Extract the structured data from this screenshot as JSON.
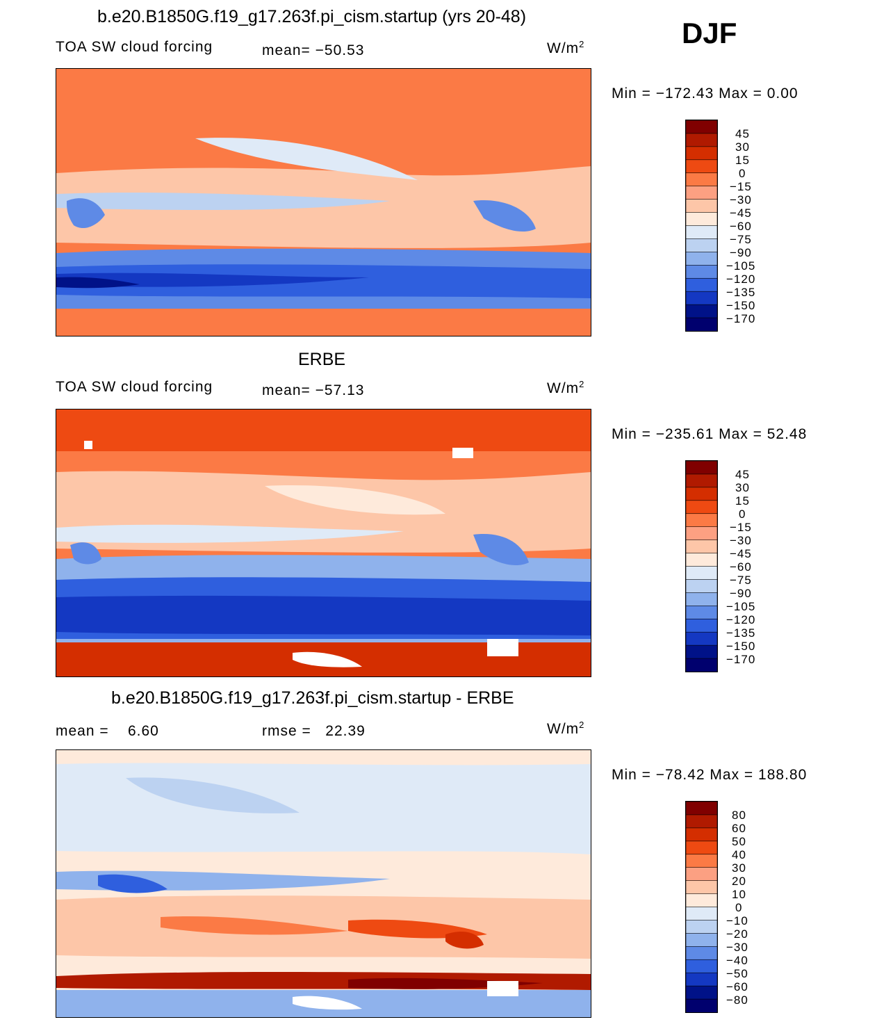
{
  "season": "DJF",
  "panels": [
    {
      "title": "b.e20.B1850G.f19_g17.263f.pi_cism.startup (yrs 20-48)",
      "left_label": "TOA SW cloud forcing",
      "mid_label": "mean= −50.53",
      "units_base": "W/m",
      "units_exp": "2",
      "minmax": "Min = −172.43 Max =   0.00"
    },
    {
      "title": "ERBE",
      "left_label": "TOA SW cloud forcing",
      "mid_label": "mean= −57.13",
      "units_base": "W/m",
      "units_exp": "2",
      "minmax": "Min = −235.61 Max =  52.48"
    },
    {
      "title": "b.e20.B1850G.f19_g17.263f.pi_cism.startup - ERBE",
      "left_label": "mean =    6.60",
      "mid_label": "rmse =   22.39",
      "units_base": "W/m",
      "units_exp": "2",
      "minmax": "Min = −78.42 Max = 188.80"
    }
  ],
  "chart_data": [
    {
      "type": "heatmap",
      "title": "b.e20.B1850G.f19_g17.263f.pi_cism.startup (yrs 20-48)",
      "variable": "TOA SW cloud forcing",
      "units": "W/m2",
      "mean": -50.53,
      "min": -172.43,
      "max": 0.0,
      "levels": [
        45,
        30,
        15,
        0,
        -15,
        -30,
        -45,
        -60,
        -75,
        -90,
        -105,
        -120,
        -135,
        -150,
        -170
      ],
      "level_labels": [
        "45",
        "30",
        "15",
        "0",
        "−15",
        "−30",
        "−45",
        "−60",
        "−75",
        "−90",
        "−105",
        "−120",
        "−135",
        "−150",
        "−170"
      ]
    },
    {
      "type": "heatmap",
      "title": "ERBE",
      "variable": "TOA SW cloud forcing",
      "units": "W/m2",
      "mean": -57.13,
      "min": -235.61,
      "max": 52.48,
      "levels": [
        45,
        30,
        15,
        0,
        -15,
        -30,
        -45,
        -60,
        -75,
        -90,
        -105,
        -120,
        -135,
        -150,
        -170
      ],
      "level_labels": [
        "45",
        "30",
        "15",
        "0",
        "−15",
        "−30",
        "−45",
        "−60",
        "−75",
        "−90",
        "−105",
        "−120",
        "−135",
        "−150",
        "−170"
      ]
    },
    {
      "type": "heatmap",
      "title": "b.e20.B1850G.f19_g17.263f.pi_cism.startup - ERBE",
      "units": "W/m2",
      "mean": 6.6,
      "rmse": 22.39,
      "min": -78.42,
      "max": 188.8,
      "levels": [
        80,
        60,
        50,
        40,
        30,
        20,
        10,
        0,
        -10,
        -20,
        -30,
        -40,
        -50,
        -60,
        -80
      ],
      "level_labels": [
        "80",
        "60",
        "50",
        "40",
        "30",
        "20",
        "10",
        "0",
        "−10",
        "−20",
        "−30",
        "−40",
        "−50",
        "−60",
        "−80"
      ]
    }
  ],
  "colormap": [
    "#800000",
    "#b01a00",
    "#d42e00",
    "#ee4a12",
    "#fb7a45",
    "#fca082",
    "#fdc6a8",
    "#feeadb",
    "#dfeaf7",
    "#bcd2f1",
    "#8fb2ec",
    "#5e8ae6",
    "#2f5fde",
    "#1438c2",
    "#001288",
    "#00006e"
  ]
}
